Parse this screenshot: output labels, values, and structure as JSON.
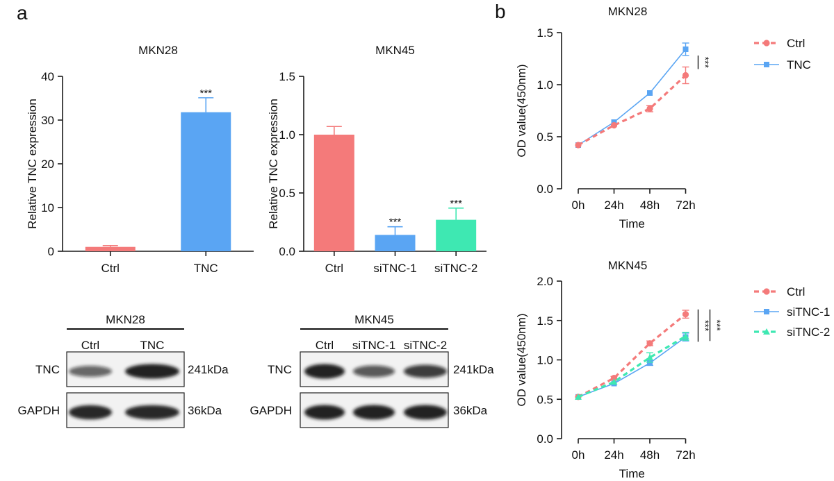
{
  "panel_labels": {
    "a": "a",
    "b": "b"
  },
  "colors": {
    "ctrl": "#f47a7a",
    "tnc": "#5aa5f3",
    "sitnc2": "#3ee8b2",
    "axis": "#1a1a1a"
  },
  "chart_data": [
    {
      "id": "bar_mkn28",
      "type": "bar",
      "title": "MKN28",
      "ylabel": "Relative TNC expression",
      "categories": [
        "Ctrl",
        "TNC"
      ],
      "values": [
        1.0,
        31.8
      ],
      "errors": [
        0.3,
        3.3
      ],
      "significance": [
        "",
        "***"
      ],
      "ylim": [
        0,
        40
      ],
      "yticks": [
        0,
        10,
        20,
        30,
        40
      ],
      "ytick_labels": [
        "0",
        "10",
        "20",
        "30",
        "40"
      ]
    },
    {
      "id": "bar_mkn45",
      "type": "bar",
      "title": "MKN45",
      "ylabel": "Relative TNC expression",
      "categories": [
        "Ctrl",
        "siTNC-1",
        "siTNC-2"
      ],
      "values": [
        1.0,
        0.14,
        0.27
      ],
      "errors": [
        0.07,
        0.07,
        0.1
      ],
      "significance": [
        "",
        "***",
        "***"
      ],
      "ylim": [
        0,
        1.5
      ],
      "yticks": [
        0,
        0.5,
        1.0,
        1.5
      ],
      "ytick_labels": [
        "0.0",
        "0.5",
        "1.0",
        "1.5"
      ]
    },
    {
      "id": "line_mkn28",
      "type": "line",
      "title": "MKN28",
      "xlabel": "Time",
      "ylabel": "OD value(450nm)",
      "x": [
        "0h",
        "24h",
        "48h",
        "72h"
      ],
      "ylim": [
        0,
        1.5
      ],
      "yticks": [
        0,
        0.5,
        1.0,
        1.5
      ],
      "ytick_labels": [
        "0.0",
        "0.5",
        "1.0",
        "1.5"
      ],
      "series": [
        {
          "name": "Ctrl",
          "values": [
            0.42,
            0.61,
            0.77,
            1.09
          ],
          "errors": [
            0.01,
            0.01,
            0.03,
            0.08
          ],
          "style": "dashed",
          "marker": "circle",
          "color": "#f47a7a"
        },
        {
          "name": "TNC",
          "values": [
            0.42,
            0.64,
            0.92,
            1.34
          ],
          "errors": [
            0.01,
            0.01,
            0.01,
            0.06
          ],
          "style": "solid",
          "marker": "square",
          "color": "#5aa5f3"
        }
      ],
      "significance": [
        {
          "label": "***",
          "between": [
            "Ctrl",
            "TNC"
          ]
        }
      ]
    },
    {
      "id": "line_mkn45",
      "type": "line",
      "title": "MKN45",
      "xlabel": "Time",
      "ylabel": "OD value(450nm)",
      "x": [
        "0h",
        "24h",
        "48h",
        "72h"
      ],
      "ylim": [
        0,
        2.0
      ],
      "yticks": [
        0,
        0.5,
        1.0,
        1.5,
        2.0
      ],
      "ytick_labels": [
        "0.0",
        "0.5",
        "1.0",
        "1.5",
        "2.0"
      ],
      "series": [
        {
          "name": "Ctrl",
          "values": [
            0.53,
            0.77,
            1.21,
            1.58
          ],
          "errors": [
            0.01,
            0.02,
            0.03,
            0.05
          ],
          "style": "dashed",
          "marker": "circle",
          "color": "#f47a7a"
        },
        {
          "name": "siTNC-1",
          "values": [
            0.53,
            0.7,
            0.96,
            1.29
          ],
          "errors": [
            0.01,
            0.01,
            0.03,
            0.05
          ],
          "style": "solid",
          "marker": "square",
          "color": "#5aa5f3"
        },
        {
          "name": "siTNC-2",
          "values": [
            0.53,
            0.72,
            1.03,
            1.3
          ],
          "errors": [
            0.01,
            0.01,
            0.06,
            0.05
          ],
          "style": "dashed",
          "marker": "triangle",
          "color": "#3ee8b2"
        }
      ],
      "significance": [
        {
          "label": "***",
          "between": [
            "Ctrl",
            "siTNC-1"
          ]
        },
        {
          "label": "***",
          "between": [
            "Ctrl",
            "siTNC-2"
          ]
        }
      ]
    }
  ],
  "blots": [
    {
      "id": "blot_mkn28",
      "cell_line": "MKN28",
      "lanes": [
        "Ctrl",
        "TNC"
      ],
      "rows": [
        {
          "protein": "TNC",
          "size": "241kDa",
          "intensity": [
            0.45,
            1.0
          ]
        },
        {
          "protein": "GAPDH",
          "size": "36kDa",
          "intensity": [
            0.95,
            0.95
          ]
        }
      ]
    },
    {
      "id": "blot_mkn45",
      "cell_line": "MKN45",
      "lanes": [
        "Ctrl",
        "siTNC-1",
        "siTNC-2"
      ],
      "rows": [
        {
          "protein": "TNC",
          "size": "241kDa",
          "intensity": [
            1.0,
            0.55,
            0.75
          ]
        },
        {
          "protein": "GAPDH",
          "size": "36kDa",
          "intensity": [
            1.0,
            1.0,
            1.0
          ]
        }
      ]
    }
  ]
}
